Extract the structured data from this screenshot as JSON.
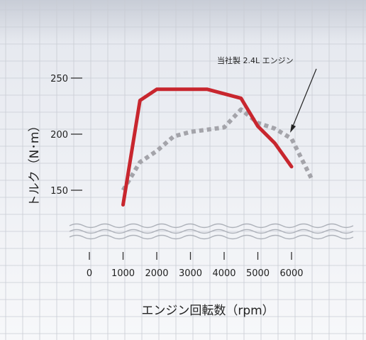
{
  "chart_data": {
    "type": "line",
    "title": "",
    "xlabel": "エンジン回転数（rpm）",
    "ylabel": "トルク（N･m）",
    "x_ticks": [
      "0",
      "1000",
      "2000",
      "3000",
      "4000",
      "5000",
      "6000"
    ],
    "y_ticks": [
      150,
      200,
      250
    ],
    "y_tick_labels": [
      "150",
      "200",
      "250"
    ],
    "axis_break": true,
    "grid": true,
    "series": [
      {
        "name": "",
        "color": "#c8262e",
        "style": "solid",
        "x": [
          1000,
          1500,
          2000,
          3000,
          3500,
          4500,
          5000,
          5500,
          6000
        ],
        "y": [
          137,
          230,
          240,
          240,
          240,
          232,
          207,
          192,
          171
        ]
      },
      {
        "name": "当社製 2.4L エンジン",
        "color": "#a4a4aa",
        "style": "dotted",
        "x": [
          1000,
          1500,
          2000,
          2500,
          3000,
          4000,
          4500,
          5000,
          5500,
          6000,
          6600
        ],
        "y": [
          150,
          175,
          185,
          198,
          202,
          206,
          222,
          210,
          205,
          196,
          160
        ]
      }
    ],
    "annotations": [
      {
        "text": "当社製 2.4L エンジン",
        "points_to_series": 1
      }
    ]
  }
}
